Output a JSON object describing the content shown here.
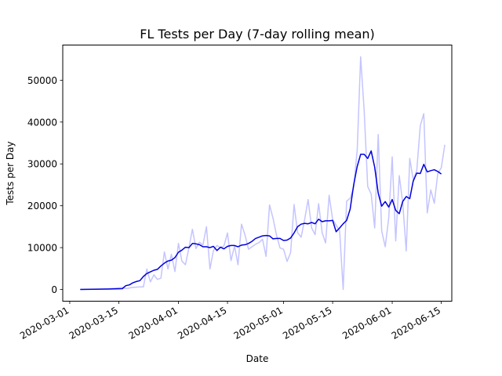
{
  "chart_data": {
    "type": "line",
    "title": "FL Tests per Day (7-day rolling mean)",
    "xlabel": "Date",
    "ylabel": "Tests per Day",
    "xlim": [
      "2020-02-28",
      "2020-06-18"
    ],
    "ylim": [
      -2800,
      58400
    ],
    "x_ticks": [
      "2020-03-01",
      "2020-03-15",
      "2020-04-01",
      "2020-04-15",
      "2020-05-01",
      "2020-05-15",
      "2020-06-01",
      "2020-06-15"
    ],
    "y_ticks": [
      0,
      10000,
      20000,
      30000,
      40000,
      50000
    ],
    "grid": false,
    "series": [
      {
        "color": "#c4c4ff",
        "points": [
          [
            "2020-03-04",
            0
          ],
          [
            "2020-03-06",
            50
          ],
          [
            "2020-03-08",
            80
          ],
          [
            "2020-03-10",
            100
          ],
          [
            "2020-03-12",
            200
          ],
          [
            "2020-03-14",
            300
          ],
          [
            "2020-03-16",
            500
          ],
          [
            "2020-03-17",
            200
          ],
          [
            "2020-03-19",
            500
          ],
          [
            "2020-03-21",
            600
          ],
          [
            "2020-03-22",
            600
          ],
          [
            "2020-03-23",
            4900
          ],
          [
            "2020-03-24",
            1800
          ],
          [
            "2020-03-25",
            3500
          ],
          [
            "2020-03-26",
            2400
          ],
          [
            "2020-03-27",
            2700
          ],
          [
            "2020-03-28",
            9000
          ],
          [
            "2020-03-29",
            4900
          ],
          [
            "2020-03-30",
            8400
          ],
          [
            "2020-03-31",
            4300
          ],
          [
            "2020-04-01",
            11000
          ],
          [
            "2020-04-02",
            6800
          ],
          [
            "2020-04-03",
            5900
          ],
          [
            "2020-04-04",
            10000
          ],
          [
            "2020-04-05",
            14400
          ],
          [
            "2020-04-06",
            9800
          ],
          [
            "2020-04-07",
            11300
          ],
          [
            "2020-04-08",
            10600
          ],
          [
            "2020-04-09",
            15000
          ],
          [
            "2020-04-10",
            4900
          ],
          [
            "2020-04-11",
            9300
          ],
          [
            "2020-04-12",
            10500
          ],
          [
            "2020-04-13",
            10000
          ],
          [
            "2020-04-14",
            10400
          ],
          [
            "2020-04-15",
            13500
          ],
          [
            "2020-04-16",
            6900
          ],
          [
            "2020-04-17",
            10400
          ],
          [
            "2020-04-18",
            5900
          ],
          [
            "2020-04-19",
            15600
          ],
          [
            "2020-04-20",
            13000
          ],
          [
            "2020-04-21",
            9600
          ],
          [
            "2020-04-22",
            10200
          ],
          [
            "2020-04-23",
            10800
          ],
          [
            "2020-04-24",
            11200
          ],
          [
            "2020-04-25",
            12000
          ],
          [
            "2020-04-26",
            7900
          ],
          [
            "2020-04-27",
            20200
          ],
          [
            "2020-04-28",
            17000
          ],
          [
            "2020-04-29",
            12900
          ],
          [
            "2020-04-30",
            9900
          ],
          [
            "2020-05-01",
            9600
          ],
          [
            "2020-05-02",
            6700
          ],
          [
            "2020-05-03",
            8800
          ],
          [
            "2020-05-04",
            20300
          ],
          [
            "2020-05-05",
            13600
          ],
          [
            "2020-05-06",
            12500
          ],
          [
            "2020-05-07",
            16600
          ],
          [
            "2020-05-08",
            21500
          ],
          [
            "2020-05-09",
            14700
          ],
          [
            "2020-05-10",
            13100
          ],
          [
            "2020-05-11",
            20500
          ],
          [
            "2020-05-12",
            13600
          ],
          [
            "2020-05-13",
            11100
          ],
          [
            "2020-05-14",
            22500
          ],
          [
            "2020-05-15",
            16700
          ],
          [
            "2020-05-16",
            15400
          ],
          [
            "2020-05-17",
            14000
          ],
          [
            "2020-05-18",
            0
          ],
          [
            "2020-05-19",
            21100
          ],
          [
            "2020-05-20",
            21800
          ],
          [
            "2020-05-21",
            24400
          ],
          [
            "2020-05-22",
            33300
          ],
          [
            "2020-05-23",
            55600
          ],
          [
            "2020-05-24",
            42700
          ],
          [
            "2020-05-25",
            24600
          ],
          [
            "2020-05-26",
            22800
          ],
          [
            "2020-05-27",
            14700
          ],
          [
            "2020-05-28",
            37000
          ],
          [
            "2020-05-29",
            14000
          ],
          [
            "2020-05-30",
            10200
          ],
          [
            "2020-05-31",
            17100
          ],
          [
            "2020-06-01",
            31700
          ],
          [
            "2020-06-02",
            11600
          ],
          [
            "2020-06-03",
            27200
          ],
          [
            "2020-06-04",
            20800
          ],
          [
            "2020-06-05",
            9200
          ],
          [
            "2020-06-06",
            31300
          ],
          [
            "2020-06-07",
            26200
          ],
          [
            "2020-06-08",
            28400
          ],
          [
            "2020-06-09",
            39100
          ],
          [
            "2020-06-10",
            42000
          ],
          [
            "2020-06-11",
            18300
          ],
          [
            "2020-06-12",
            23800
          ],
          [
            "2020-06-13",
            20600
          ],
          [
            "2020-06-14",
            27700
          ],
          [
            "2020-06-15",
            29100
          ],
          [
            "2020-06-16",
            34600
          ]
        ]
      },
      {
        "color": "#0000dd",
        "points": [
          [
            "2020-03-04",
            0
          ],
          [
            "2020-03-08",
            50
          ],
          [
            "2020-03-12",
            100
          ],
          [
            "2020-03-16",
            200
          ],
          [
            "2020-03-17",
            900
          ],
          [
            "2020-03-18",
            1100
          ],
          [
            "2020-03-19",
            1600
          ],
          [
            "2020-03-20",
            1900
          ],
          [
            "2020-03-21",
            2100
          ],
          [
            "2020-03-22",
            3100
          ],
          [
            "2020-03-23",
            3800
          ],
          [
            "2020-03-24",
            4200
          ],
          [
            "2020-03-25",
            4600
          ],
          [
            "2020-03-26",
            4800
          ],
          [
            "2020-03-27",
            5600
          ],
          [
            "2020-03-28",
            6300
          ],
          [
            "2020-03-29",
            6800
          ],
          [
            "2020-03-30",
            7000
          ],
          [
            "2020-03-31",
            7600
          ],
          [
            "2020-04-01",
            8900
          ],
          [
            "2020-04-02",
            9400
          ],
          [
            "2020-04-03",
            10100
          ],
          [
            "2020-04-04",
            10000
          ],
          [
            "2020-04-05",
            11000
          ],
          [
            "2020-04-06",
            10900
          ],
          [
            "2020-04-07",
            10700
          ],
          [
            "2020-04-08",
            10200
          ],
          [
            "2020-04-09",
            10200
          ],
          [
            "2020-04-10",
            10000
          ],
          [
            "2020-04-11",
            10300
          ],
          [
            "2020-04-12",
            9300
          ],
          [
            "2020-04-13",
            10100
          ],
          [
            "2020-04-14",
            9700
          ],
          [
            "2020-04-15",
            10300
          ],
          [
            "2020-04-16",
            10500
          ],
          [
            "2020-04-17",
            10500
          ],
          [
            "2020-04-18",
            10200
          ],
          [
            "2020-04-19",
            10600
          ],
          [
            "2020-04-20",
            10700
          ],
          [
            "2020-04-21",
            11000
          ],
          [
            "2020-04-22",
            11500
          ],
          [
            "2020-04-23",
            12200
          ],
          [
            "2020-04-24",
            12500
          ],
          [
            "2020-04-25",
            12800
          ],
          [
            "2020-04-26",
            12900
          ],
          [
            "2020-04-27",
            12800
          ],
          [
            "2020-04-28",
            12100
          ],
          [
            "2020-04-29",
            12200
          ],
          [
            "2020-04-30",
            12200
          ],
          [
            "2020-05-01",
            11700
          ],
          [
            "2020-05-02",
            11800
          ],
          [
            "2020-05-03",
            12300
          ],
          [
            "2020-05-04",
            13500
          ],
          [
            "2020-05-05",
            15000
          ],
          [
            "2020-05-06",
            15600
          ],
          [
            "2020-05-07",
            15800
          ],
          [
            "2020-05-08",
            15700
          ],
          [
            "2020-05-09",
            16000
          ],
          [
            "2020-05-10",
            15700
          ],
          [
            "2020-05-11",
            16800
          ],
          [
            "2020-05-12",
            16200
          ],
          [
            "2020-05-13",
            16400
          ],
          [
            "2020-05-14",
            16400
          ],
          [
            "2020-05-15",
            16500
          ],
          [
            "2020-05-16",
            13800
          ],
          [
            "2020-05-17",
            14700
          ],
          [
            "2020-05-18",
            15700
          ],
          [
            "2020-05-19",
            16500
          ],
          [
            "2020-05-20",
            19200
          ],
          [
            "2020-05-21",
            25000
          ],
          [
            "2020-05-22",
            29400
          ],
          [
            "2020-05-23",
            32300
          ],
          [
            "2020-05-24",
            32300
          ],
          [
            "2020-05-25",
            31300
          ],
          [
            "2020-05-26",
            33100
          ],
          [
            "2020-05-27",
            29200
          ],
          [
            "2020-05-28",
            23000
          ],
          [
            "2020-05-29",
            19900
          ],
          [
            "2020-05-30",
            21000
          ],
          [
            "2020-05-31",
            19700
          ],
          [
            "2020-06-01",
            21500
          ],
          [
            "2020-06-02",
            18900
          ],
          [
            "2020-06-03",
            18100
          ],
          [
            "2020-06-04",
            21000
          ],
          [
            "2020-06-05",
            22200
          ],
          [
            "2020-06-06",
            21700
          ],
          [
            "2020-06-07",
            25900
          ],
          [
            "2020-06-08",
            27800
          ],
          [
            "2020-06-09",
            27700
          ],
          [
            "2020-06-10",
            29900
          ],
          [
            "2020-06-11",
            28100
          ],
          [
            "2020-06-12",
            28400
          ],
          [
            "2020-06-13",
            28600
          ],
          [
            "2020-06-14",
            28200
          ],
          [
            "2020-06-15",
            27600
          ]
        ]
      }
    ]
  }
}
